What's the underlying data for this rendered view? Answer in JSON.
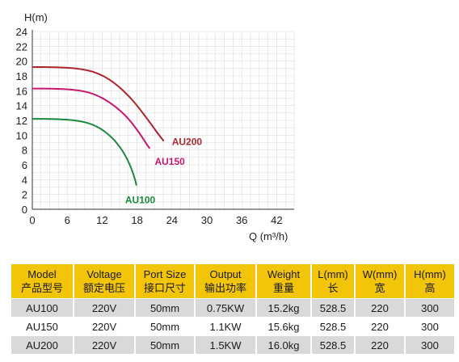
{
  "chart_data": {
    "type": "line",
    "ylabel": "H(m)",
    "xlabel": "Q (m³/h)",
    "xlim": [
      0,
      45
    ],
    "ylim": [
      0,
      24
    ],
    "xticks": [
      "0",
      "6",
      "12",
      "18",
      "24",
      "30",
      "36",
      "42"
    ],
    "yticks": [
      "0",
      "2",
      "4",
      "6",
      "8",
      "10",
      "12",
      "14",
      "16",
      "18",
      "20",
      "22",
      "24"
    ],
    "grid": true,
    "series": [
      {
        "name": "AU200",
        "color": "#b0262c",
        "points": [
          [
            0,
            19.2
          ],
          [
            4,
            19.2
          ],
          [
            8,
            19.0
          ],
          [
            11,
            18.5
          ],
          [
            14,
            17.2
          ],
          [
            17,
            15.0
          ],
          [
            19.5,
            12.5
          ],
          [
            21.5,
            10.3
          ],
          [
            22.6,
            9.2
          ]
        ]
      },
      {
        "name": "AU150",
        "color": "#c8176e",
        "points": [
          [
            0,
            16.3
          ],
          [
            4,
            16.3
          ],
          [
            8,
            16.1
          ],
          [
            11,
            15.5
          ],
          [
            14,
            14.1
          ],
          [
            16.5,
            12.3
          ],
          [
            18.5,
            10.2
          ],
          [
            19.8,
            8.6
          ],
          [
            20.2,
            8.2
          ]
        ]
      },
      {
        "name": "AU100",
        "color": "#1a8a3c",
        "points": [
          [
            0,
            12.2
          ],
          [
            4,
            12.2
          ],
          [
            8,
            12.0
          ],
          [
            11,
            11.3
          ],
          [
            13.5,
            9.9
          ],
          [
            15.5,
            8.0
          ],
          [
            16.8,
            6.0
          ],
          [
            17.6,
            4.2
          ],
          [
            17.9,
            3.2
          ]
        ]
      }
    ]
  },
  "table": {
    "headers": [
      [
        "Model",
        "产品型号"
      ],
      [
        "Voltage",
        "额定电压"
      ],
      [
        "Port Size",
        "接口尺寸"
      ],
      [
        "Output",
        "输出功率"
      ],
      [
        "Weight",
        "重量"
      ],
      [
        "L(mm)",
        "长"
      ],
      [
        "W(mm)",
        "宽"
      ],
      [
        "H(mm)",
        "高"
      ]
    ],
    "rows": [
      [
        "AU100",
        "220V",
        "50mm",
        "0.75KW",
        "15.2kg",
        "528.5",
        "220",
        "300"
      ],
      [
        "AU150",
        "220V",
        "50mm",
        "1.1KW",
        "15.6kg",
        "528.5",
        "220",
        "300"
      ],
      [
        "AU200",
        "220V",
        "50mm",
        "1.5KW",
        "16.0kg",
        "528.5",
        "220",
        "300"
      ]
    ]
  }
}
